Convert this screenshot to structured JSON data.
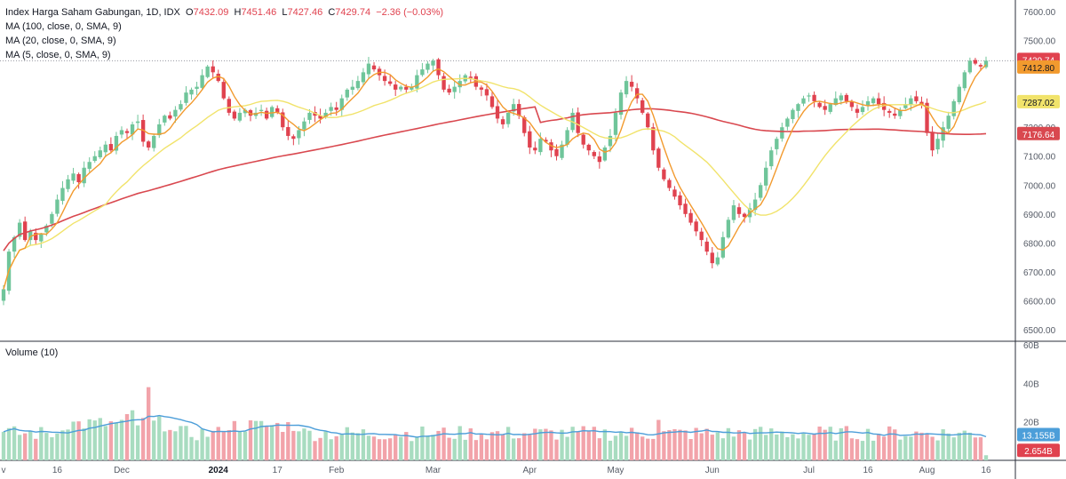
{
  "legend": {
    "title": "Index Harga Saham Gabungan, 1D, IDX",
    "open_label": "O",
    "open": "7432.09",
    "high_label": "H",
    "high": "7451.46",
    "low_label": "L",
    "low": "7427.46",
    "close_label": "C",
    "close": "7429.74",
    "change": "−2.36 (−0.03%)",
    "ma100": "MA (100, close, 0, SMA, 9)",
    "ma20": "MA (20, close, 0, SMA, 9)",
    "ma5": "MA (5, close, 0, SMA, 9)",
    "volume": "Volume (10)"
  },
  "price_badges": {
    "last": "7429.74",
    "ma5": "7412.80",
    "ma20": "7287.02",
    "ma100": "7176.64"
  },
  "volume_badges": {
    "vol_ma": "13.155B",
    "last_vol": "2.654B"
  },
  "colors": {
    "up": "#6fc59a",
    "down": "#e0424f",
    "ma100": "#d9484f",
    "ma20": "#f1e36b",
    "ma5": "#f29a2e",
    "vol_ma": "#4c9ed9"
  },
  "chart_data": {
    "type": "candlestick",
    "title": "Index Harga Saham Gabungan, 1D, IDX",
    "y_axis": {
      "ticks": [
        "7600.00",
        "7500.00",
        "7400.00",
        "7300.00",
        "7200.00",
        "7100.00",
        "7000.00",
        "6900.00",
        "6800.00",
        "6700.00",
        "6600.00",
        "6500.00"
      ],
      "range": [
        6460,
        7640
      ]
    },
    "volume_axis": {
      "ticks": [
        "60B",
        "40B",
        "20B"
      ],
      "range": [
        0,
        60
      ]
    },
    "x_ticks": [
      {
        "label": "v",
        "bold": false
      },
      {
        "label": "16",
        "bold": false
      },
      {
        "label": "Dec",
        "bold": false
      },
      {
        "label": "2024",
        "bold": true
      },
      {
        "label": "17",
        "bold": false
      },
      {
        "label": "Feb",
        "bold": false
      },
      {
        "label": "Mar",
        "bold": false
      },
      {
        "label": "Apr",
        "bold": false
      },
      {
        "label": "May",
        "bold": false
      },
      {
        "label": "Jun",
        "bold": false
      },
      {
        "label": "Jul",
        "bold": false
      },
      {
        "label": "16",
        "bold": false
      },
      {
        "label": "Aug",
        "bold": false
      },
      {
        "label": "16",
        "bold": false
      }
    ],
    "x_tick_index": [
      0,
      10,
      22,
      40,
      51,
      62,
      80,
      98,
      114,
      132,
      150,
      161,
      172,
      183
    ],
    "closes": [
      6640,
      6770,
      6820,
      6870,
      6810,
      6840,
      6810,
      6830,
      6860,
      6900,
      6950,
      6990,
      7020,
      7040,
      7010,
      7060,
      7080,
      7100,
      7120,
      7140,
      7120,
      7170,
      7190,
      7180,
      7210,
      7220,
      7150,
      7130,
      7170,
      7210,
      7240,
      7230,
      7260,
      7280,
      7320,
      7330,
      7340,
      7380,
      7410,
      7390,
      7360,
      7300,
      7250,
      7230,
      7250,
      7260,
      7240,
      7250,
      7260,
      7230,
      7270,
      7250,
      7200,
      7170,
      7160,
      7190,
      7220,
      7250,
      7240,
      7230,
      7250,
      7270,
      7260,
      7300,
      7330,
      7340,
      7360,
      7390,
      7420,
      7400,
      7380,
      7360,
      7350,
      7330,
      7340,
      7330,
      7340,
      7380,
      7400,
      7420,
      7430,
      7380,
      7330,
      7320,
      7340,
      7360,
      7380,
      7370,
      7340,
      7330,
      7310,
      7270,
      7230,
      7210,
      7250,
      7280,
      7240,
      7180,
      7130,
      7120,
      7160,
      7150,
      7120,
      7100,
      7140,
      7190,
      7250,
      7180,
      7140,
      7120,
      7100,
      7080,
      7130,
      7170,
      7250,
      7320,
      7360,
      7340,
      7300,
      7250,
      7200,
      7120,
      7060,
      7020,
      6990,
      6960,
      6930,
      6900,
      6870,
      6840,
      6810,
      6770,
      6730,
      6750,
      6820,
      6880,
      6930,
      6900,
      6890,
      6920,
      6950,
      7000,
      7060,
      7120,
      7160,
      7200,
      7230,
      7260,
      7280,
      7300,
      7310,
      7290,
      7270,
      7260,
      7280,
      7300,
      7310,
      7290,
      7270,
      7250,
      7270,
      7290,
      7300,
      7280,
      7260,
      7250,
      7240,
      7260,
      7280,
      7300,
      7290,
      7280,
      7180,
      7120,
      7160,
      7200,
      7240,
      7290,
      7340,
      7390,
      7430,
      7420,
      7410,
      7430
    ]
  }
}
